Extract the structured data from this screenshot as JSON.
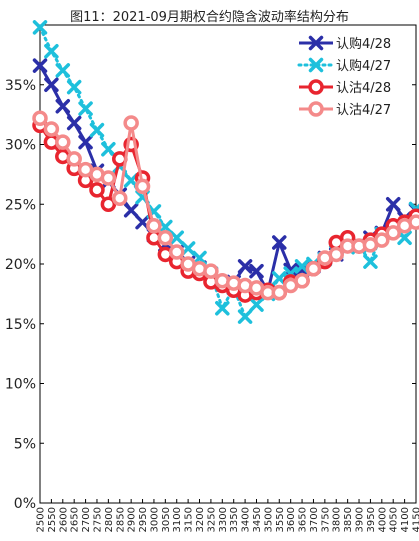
{
  "chart_data": {
    "type": "line",
    "title": "图11：2021-09月期权合约隐含波动率结构分布",
    "xlabel": "",
    "ylabel": "",
    "x": [
      2500,
      2550,
      2600,
      2650,
      2700,
      2750,
      2800,
      2850,
      2900,
      2950,
      3000,
      3050,
      3100,
      3150,
      3200,
      3250,
      3300,
      3350,
      3400,
      3450,
      3500,
      3550,
      3600,
      3650,
      3700,
      3750,
      3800,
      3850,
      3900,
      3950,
      4000,
      4050,
      4100,
      4150
    ],
    "xtick_labels": [
      "2500",
      "2550",
      "2600",
      "2650",
      "2700",
      "2750",
      "2800",
      "2850",
      "2900",
      "2950",
      "3000",
      "3050",
      "3100",
      "3150",
      "3200",
      "3250",
      "3300",
      "3350",
      "3400",
      "3450",
      "3500",
      "3550",
      "3600",
      "3650",
      "3700",
      "3750",
      "3800",
      "3850",
      "3900",
      "3950",
      "4000",
      "4050",
      "4100",
      "4150"
    ],
    "yticks": [
      "0%",
      "5%",
      "10%",
      "15%",
      "20%",
      "25%",
      "30%",
      "35%"
    ],
    "ylim": [
      0,
      40
    ],
    "xlim": [
      2500,
      4150
    ],
    "grid": false,
    "legend_position": "top-right",
    "series": [
      {
        "name": "认购4/28",
        "color": "#2b2fa8",
        "marker": "x",
        "linestyle": "solid",
        "values": [
          36.6,
          35.0,
          33.2,
          31.8,
          30.2,
          27.8,
          26.9,
          25.8,
          24.5,
          23.5,
          22.4,
          21.6,
          21.0,
          20.1,
          19.7,
          19.2,
          18.3,
          18.5,
          19.8,
          19.4,
          17.7,
          21.8,
          19.5,
          19.5,
          19.8,
          20.5,
          20.8,
          21.5,
          21.6,
          22.2,
          22.6,
          25.0,
          23.8,
          24.5
        ]
      },
      {
        "name": "认购4/27",
        "color": "#1ec0dc",
        "marker": "x",
        "linestyle": "dotted",
        "values": [
          39.8,
          37.8,
          36.2,
          34.8,
          33.0,
          31.2,
          29.6,
          28.2,
          27.0,
          25.6,
          24.4,
          23.1,
          22.2,
          21.3,
          20.5,
          19.2,
          16.3,
          18.0,
          15.6,
          16.6,
          17.5,
          18.8,
          19.2,
          19.8,
          20.0,
          20.4,
          21.0,
          21.4,
          21.5,
          20.2,
          22.5,
          22.8,
          22.2,
          24.6
        ]
      },
      {
        "name": "认沽4/28",
        "color": "#e8252f",
        "marker": "o",
        "linestyle": "solid",
        "values": [
          31.6,
          30.2,
          29.0,
          28.0,
          27.0,
          26.2,
          25.0,
          28.8,
          30.0,
          27.2,
          22.2,
          20.8,
          20.2,
          19.4,
          19.2,
          18.5,
          18.2,
          17.8,
          17.4,
          17.6,
          17.8,
          17.6,
          18.5,
          18.6,
          19.6,
          20.2,
          21.8,
          22.2,
          21.5,
          22.0,
          22.5,
          23.2,
          23.5,
          24.0
        ]
      },
      {
        "name": "认沽4/27",
        "color": "#f48a8a",
        "marker": "o",
        "linestyle": "solid",
        "values": [
          32.2,
          31.3,
          30.2,
          28.8,
          27.9,
          27.5,
          27.2,
          25.5,
          31.8,
          26.5,
          23.2,
          22.2,
          21.0,
          20.0,
          19.6,
          19.4,
          18.6,
          18.4,
          18.2,
          18.0,
          17.6,
          17.6,
          18.2,
          18.6,
          19.6,
          20.5,
          20.8,
          21.5,
          21.5,
          21.6,
          22.0,
          22.6,
          23.2,
          23.5
        ]
      }
    ]
  }
}
